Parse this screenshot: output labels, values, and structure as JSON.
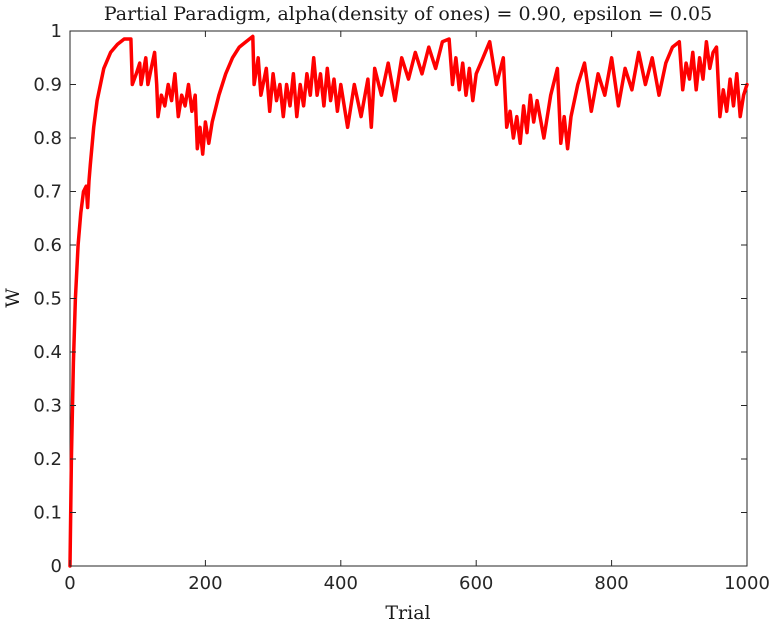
{
  "chart_data": {
    "type": "line",
    "title": "Partial Paradigm, alpha(density of ones) = 0.90, epsilon = 0.05",
    "xlabel": "Trial",
    "ylabel": "W",
    "xlim": [
      0,
      1000
    ],
    "ylim": [
      0,
      1
    ],
    "xticks": [
      "0",
      "200",
      "400",
      "600",
      "800",
      "1000"
    ],
    "yticks": [
      "0",
      "0.1",
      "0.2",
      "0.3",
      "0.4",
      "0.5",
      "0.6",
      "0.7",
      "0.8",
      "0.9",
      "1"
    ],
    "grid": false,
    "series": [
      {
        "color": "#ff0000",
        "x": [
          0,
          2,
          5,
          8,
          12,
          16,
          20,
          24,
          26,
          28,
          30,
          35,
          40,
          50,
          60,
          70,
          80,
          90,
          92,
          98,
          103,
          105,
          112,
          115,
          120,
          125,
          128,
          130,
          135,
          140,
          145,
          150,
          155,
          160,
          165,
          170,
          175,
          180,
          185,
          188,
          192,
          196,
          200,
          205,
          210,
          220,
          230,
          240,
          250,
          260,
          270,
          272,
          278,
          282,
          290,
          295,
          300,
          305,
          310,
          315,
          320,
          325,
          330,
          335,
          340,
          345,
          350,
          355,
          360,
          365,
          370,
          375,
          380,
          385,
          390,
          395,
          400,
          410,
          420,
          430,
          440,
          445,
          450,
          460,
          470,
          480,
          490,
          500,
          510,
          520,
          530,
          540,
          550,
          560,
          565,
          570,
          575,
          580,
          585,
          590,
          595,
          600,
          610,
          620,
          630,
          640,
          645,
          650,
          655,
          660,
          665,
          670,
          675,
          680,
          685,
          690,
          700,
          710,
          720,
          725,
          730,
          735,
          740,
          750,
          760,
          770,
          780,
          790,
          800,
          810,
          820,
          830,
          840,
          850,
          860,
          870,
          880,
          890,
          900,
          905,
          910,
          915,
          920,
          925,
          930,
          935,
          940,
          945,
          950,
          955,
          960,
          965,
          970,
          975,
          980,
          985,
          990,
          995,
          1000
        ],
        "y": [
          0.0,
          0.2,
          0.38,
          0.5,
          0.6,
          0.66,
          0.7,
          0.71,
          0.67,
          0.72,
          0.75,
          0.82,
          0.87,
          0.93,
          0.96,
          0.975,
          0.985,
          0.985,
          0.9,
          0.92,
          0.94,
          0.9,
          0.95,
          0.9,
          0.93,
          0.96,
          0.9,
          0.84,
          0.88,
          0.86,
          0.9,
          0.87,
          0.92,
          0.84,
          0.88,
          0.86,
          0.9,
          0.85,
          0.88,
          0.78,
          0.82,
          0.77,
          0.83,
          0.79,
          0.83,
          0.88,
          0.92,
          0.95,
          0.97,
          0.98,
          0.99,
          0.9,
          0.95,
          0.88,
          0.93,
          0.85,
          0.92,
          0.87,
          0.9,
          0.84,
          0.9,
          0.86,
          0.92,
          0.84,
          0.9,
          0.86,
          0.92,
          0.88,
          0.95,
          0.88,
          0.92,
          0.86,
          0.93,
          0.87,
          0.91,
          0.85,
          0.9,
          0.82,
          0.9,
          0.84,
          0.91,
          0.82,
          0.93,
          0.88,
          0.94,
          0.87,
          0.95,
          0.91,
          0.96,
          0.92,
          0.97,
          0.93,
          0.98,
          0.985,
          0.9,
          0.95,
          0.89,
          0.94,
          0.88,
          0.93,
          0.87,
          0.92,
          0.95,
          0.98,
          0.9,
          0.95,
          0.82,
          0.85,
          0.8,
          0.84,
          0.79,
          0.86,
          0.81,
          0.88,
          0.83,
          0.87,
          0.8,
          0.88,
          0.93,
          0.79,
          0.84,
          0.78,
          0.84,
          0.9,
          0.94,
          0.85,
          0.92,
          0.88,
          0.95,
          0.86,
          0.93,
          0.89,
          0.96,
          0.9,
          0.95,
          0.88,
          0.94,
          0.97,
          0.98,
          0.89,
          0.94,
          0.91,
          0.96,
          0.89,
          0.95,
          0.91,
          0.98,
          0.93,
          0.96,
          0.97,
          0.84,
          0.89,
          0.85,
          0.91,
          0.86,
          0.92,
          0.84,
          0.88,
          0.9
        ]
      }
    ]
  }
}
